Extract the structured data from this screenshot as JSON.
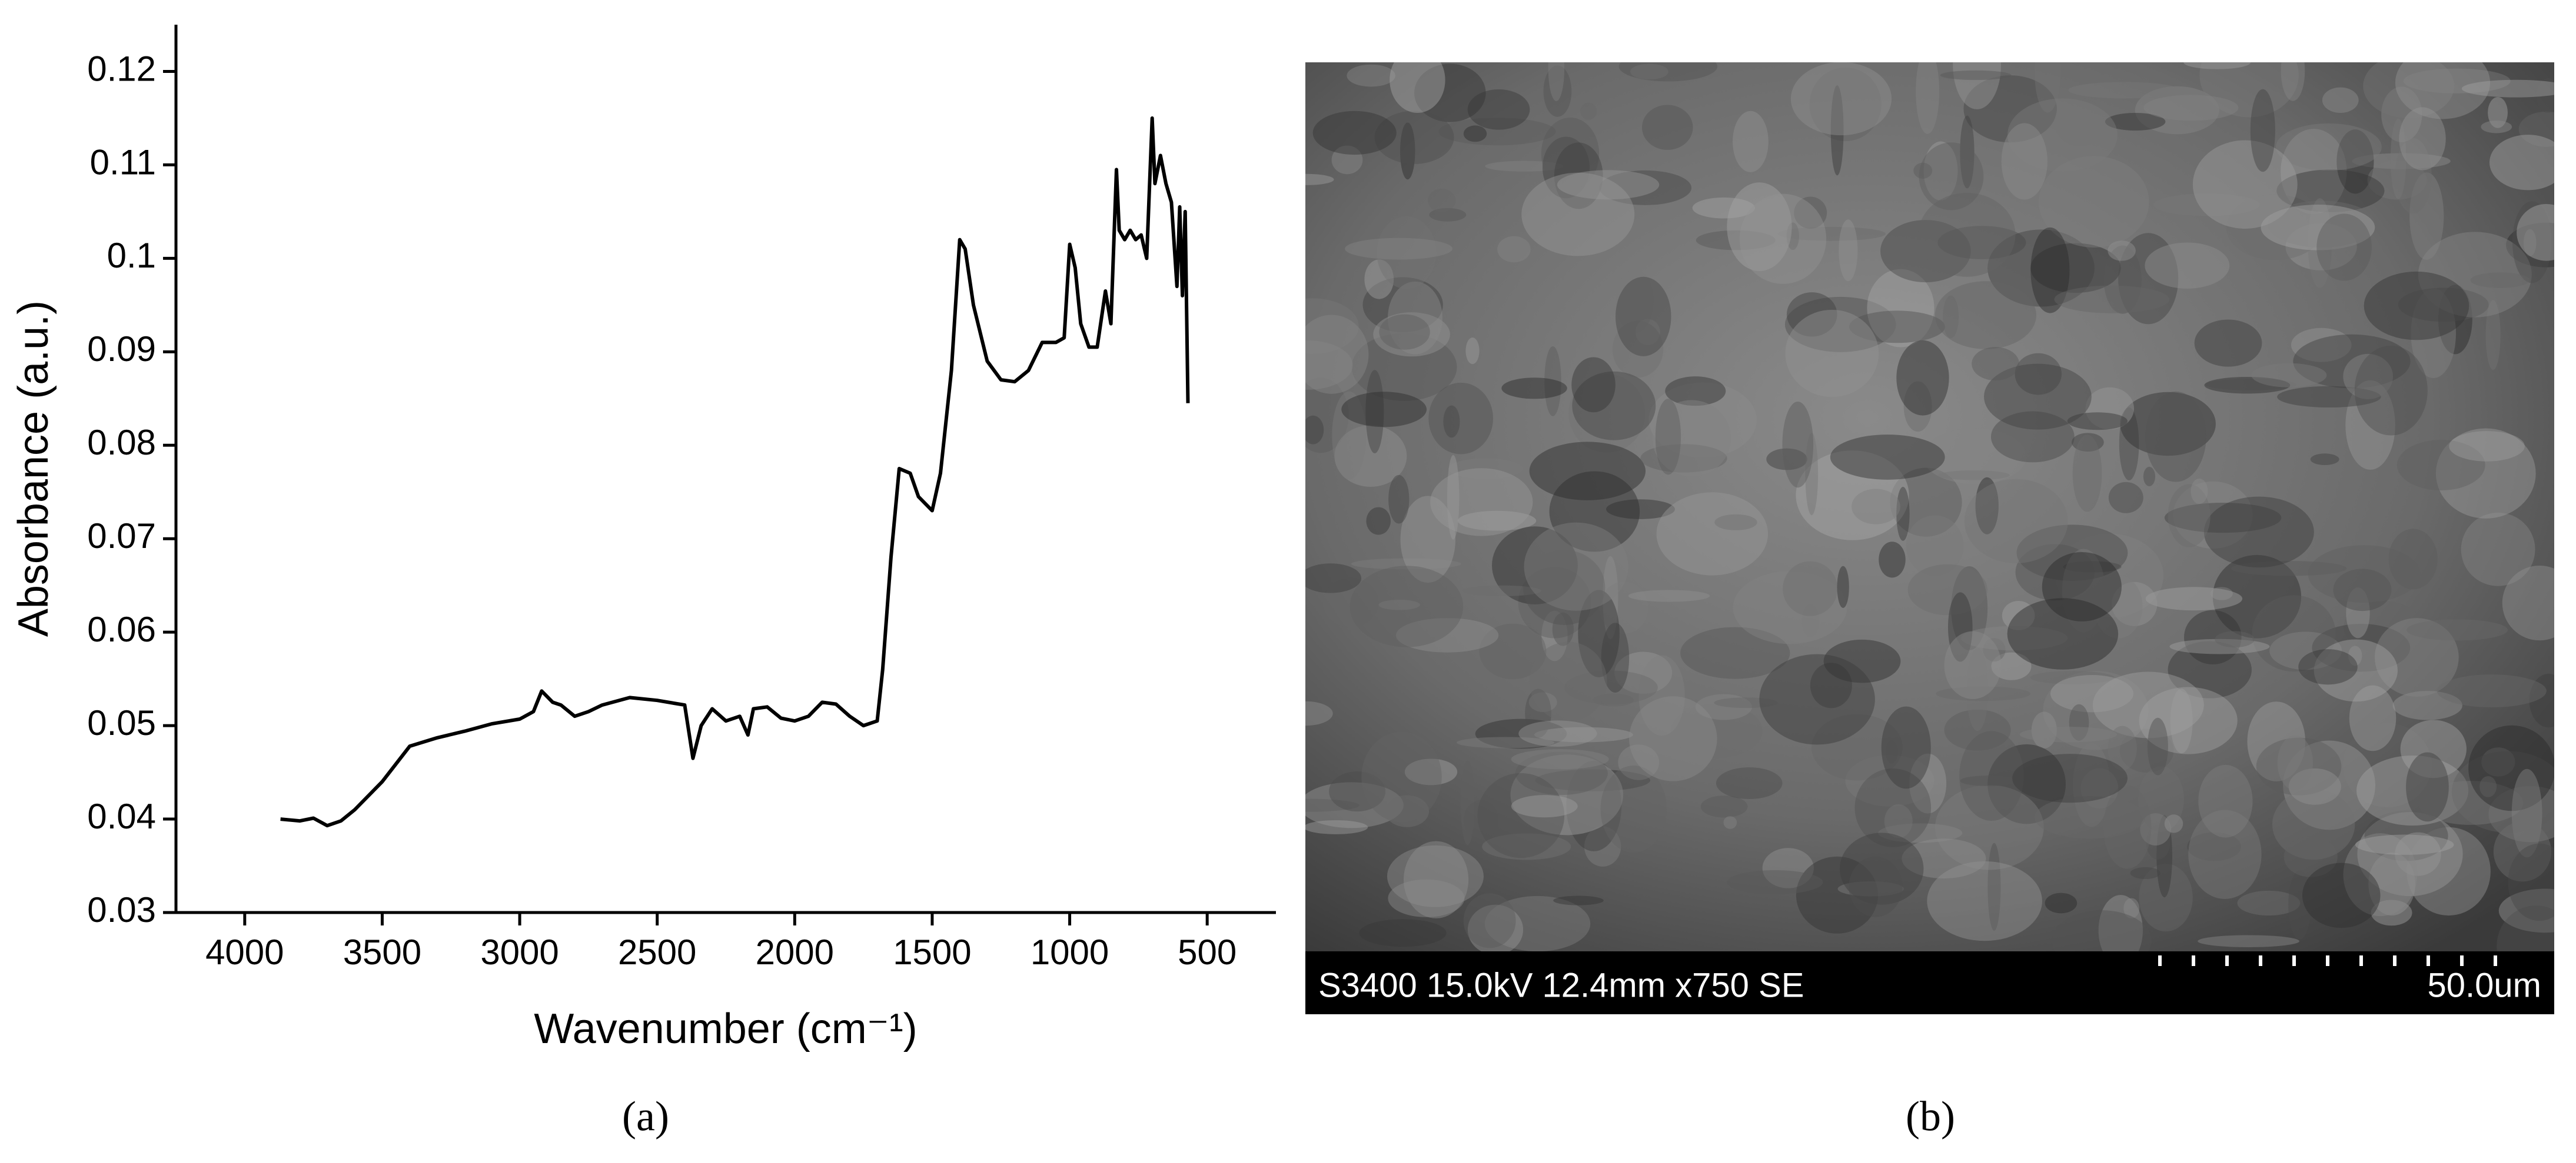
{
  "chart_data": {
    "type": "line",
    "x_label": "Wavenumber (cm⁻¹)",
    "y_label": "Absorbance (a.u.)",
    "xlim": [
      4250,
      250
    ],
    "ylim": [
      0.03,
      0.125
    ],
    "xticks": [
      4000,
      3500,
      3000,
      2500,
      2000,
      1500,
      1000,
      500
    ],
    "yticks": [
      0.03,
      0.04,
      0.05,
      0.06,
      0.07,
      0.08,
      0.09,
      0.1,
      0.11,
      0.12
    ],
    "x": [
      3870,
      3800,
      3750,
      3700,
      3650,
      3600,
      3500,
      3400,
      3300,
      3200,
      3100,
      3000,
      2950,
      2920,
      2880,
      2850,
      2800,
      2750,
      2700,
      2600,
      2500,
      2400,
      2370,
      2340,
      2300,
      2250,
      2200,
      2170,
      2150,
      2100,
      2050,
      2000,
      1950,
      1900,
      1850,
      1800,
      1750,
      1700,
      1680,
      1650,
      1620,
      1580,
      1550,
      1500,
      1470,
      1430,
      1400,
      1380,
      1350,
      1300,
      1250,
      1200,
      1150,
      1100,
      1050,
      1020,
      1000,
      980,
      960,
      930,
      900,
      870,
      850,
      830,
      820,
      800,
      780,
      760,
      740,
      720,
      700,
      690,
      670,
      650,
      630,
      610,
      600,
      590,
      580,
      570
    ],
    "series": [
      {
        "color": "#000000",
        "values": [
          0.04,
          0.0398,
          0.0401,
          0.0393,
          0.0398,
          0.041,
          0.044,
          0.0478,
          0.0487,
          0.0494,
          0.0502,
          0.0507,
          0.0515,
          0.0537,
          0.0525,
          0.0522,
          0.051,
          0.0515,
          0.0522,
          0.053,
          0.0527,
          0.0522,
          0.0465,
          0.05,
          0.0518,
          0.0505,
          0.051,
          0.049,
          0.0518,
          0.052,
          0.0508,
          0.0505,
          0.051,
          0.0525,
          0.0523,
          0.051,
          0.05,
          0.0505,
          0.056,
          0.068,
          0.0775,
          0.077,
          0.0745,
          0.073,
          0.077,
          0.088,
          0.102,
          0.101,
          0.095,
          0.089,
          0.087,
          0.0868,
          0.088,
          0.091,
          0.091,
          0.0915,
          0.1015,
          0.099,
          0.093,
          0.0905,
          0.0905,
          0.0965,
          0.093,
          0.1095,
          0.103,
          0.102,
          0.103,
          0.102,
          0.1025,
          0.1,
          0.115,
          0.108,
          0.111,
          0.108,
          0.106,
          0.097,
          0.1055,
          0.096,
          0.105,
          0.0845
        ]
      }
    ]
  },
  "panel_a": {
    "label": "(a)"
  },
  "panel_b": {
    "label": "(b)",
    "info": "S3400 15.0kV 12.4mm x750 SE",
    "scale": "50.0um"
  }
}
